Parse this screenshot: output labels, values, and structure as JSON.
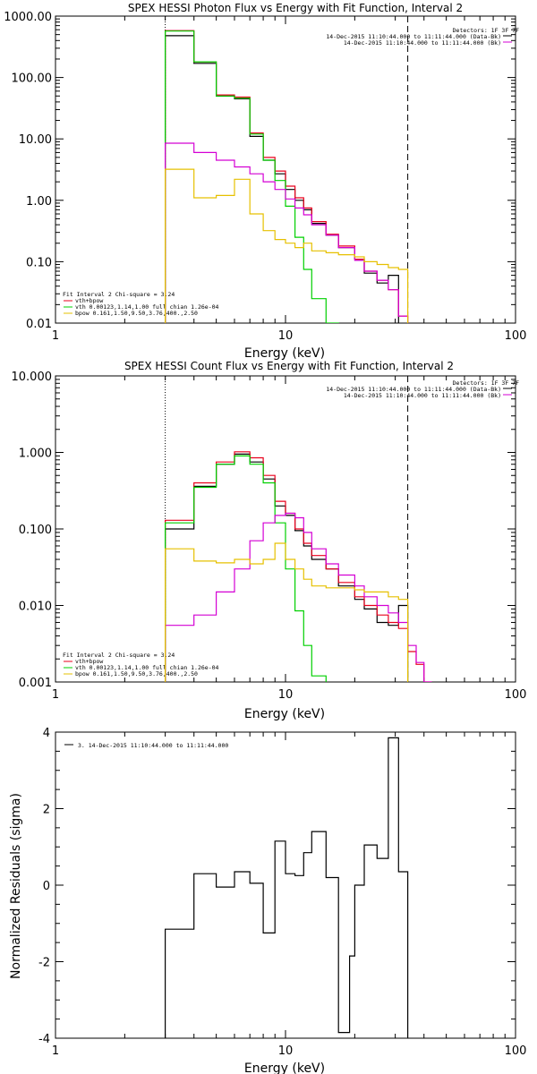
{
  "colors": {
    "total": "#000000",
    "model_sum": "#e8001c",
    "vth": "#00d000",
    "bpow": "#d400d4",
    "bkg": "#e6c000",
    "axis": "#000000"
  },
  "chart_data": [
    {
      "type": "line",
      "title": "SPEX HESSI Photon Flux vs Energy with Fit Function, Interval 2",
      "xlabel": "Energy (keV)",
      "ylabel": "",
      "xscale": "log",
      "yscale": "log",
      "xlim": [
        1,
        100
      ],
      "ylim": [
        0.01,
        1000
      ],
      "xticks": [
        "1",
        "10",
        "100"
      ],
      "yticks": [
        "0.01",
        "0.10",
        "1.00",
        "10.00",
        "100.00",
        "1000.00"
      ],
      "energy_edges": [
        3,
        4,
        5,
        6,
        7,
        8,
        9,
        10,
        11,
        12,
        13,
        15,
        17,
        20,
        22,
        25,
        28,
        31,
        34,
        37,
        40
      ],
      "vlines": [
        {
          "x": 3,
          "style": "dotted"
        },
        {
          "x": 34,
          "style": "dashed"
        }
      ],
      "legend_top": {
        "header": "Detectors: 1F 3F 7F",
        "lines": [
          "14-Dec-2015 11:10:44.000 to 11:11:44.000 (Data-Bk)",
          "14-Dec-2015 11:10:44.000 to 11:11:44.000 (Bk)"
        ]
      },
      "legend_bottom": {
        "header": "Fit Interval 2   Chi-square = 3.24",
        "lines": [
          "vth+bpow",
          "vth 0.00123,1.14,1.00  full chian 1.26e-04",
          "bpow 0.161,1.50,9.50,3.76,400.,2.50"
        ]
      },
      "series": [
        {
          "name": "14-Dec-2015 11:10:44.000 to 11:11:44.000 (Data-Bk)",
          "role": "total",
          "values": [
            480,
            170,
            50,
            45,
            11,
            4.5,
            2.7,
            1.5,
            1.0,
            0.7,
            0.42,
            0.27,
            0.17,
            0.11,
            0.065,
            0.045,
            0.06,
            null,
            null,
            null
          ]
        },
        {
          "name": "vth+bpow",
          "role": "model_sum",
          "values": [
            580,
            180,
            52,
            48,
            12.5,
            5,
            3,
            1.7,
            1.1,
            0.75,
            0.45,
            0.28,
            0.18,
            0.11,
            0.07,
            0.05,
            0.035,
            0.013,
            null,
            null
          ]
        },
        {
          "name": "vth 0.00123,1.14,1.00  full chian 1.26e-04",
          "role": "vth",
          "values": [
            570,
            180,
            50,
            46,
            12,
            4.5,
            2.1,
            0.8,
            0.25,
            0.075,
            0.025,
            0.01,
            0.003,
            null,
            null,
            null,
            null,
            null,
            null,
            null
          ]
        },
        {
          "name": "bpow 0.161,1.50,9.50,3.76,400.,2.50",
          "role": "bpow",
          "values": [
            8.5,
            6.0,
            4.5,
            3.5,
            2.7,
            2.0,
            1.5,
            1.05,
            0.75,
            0.58,
            0.4,
            0.27,
            0.17,
            0.105,
            0.07,
            0.05,
            0.035,
            0.013,
            0.008,
            null
          ]
        },
        {
          "name": "14-Dec-2015 11:10:44.000 to 11:11:44.000 (Bk)",
          "role": "bkg",
          "values": [
            3.2,
            1.1,
            1.2,
            2.2,
            0.6,
            0.32,
            0.23,
            0.2,
            0.17,
            0.2,
            0.15,
            0.14,
            0.13,
            0.12,
            0.1,
            0.09,
            0.08,
            0.075,
            null,
            null
          ]
        }
      ]
    },
    {
      "type": "line",
      "title": "SPEX HESSI Count Flux vs Energy with Fit Function, Interval 2",
      "xlabel": "Energy (keV)",
      "ylabel": "",
      "xscale": "log",
      "yscale": "log",
      "xlim": [
        1,
        100
      ],
      "ylim": [
        0.001,
        10
      ],
      "xticks": [
        "1",
        "10",
        "100"
      ],
      "yticks": [
        "0.001",
        "0.010",
        "0.100",
        "1.000",
        "10.000"
      ],
      "energy_edges": [
        3,
        4,
        5,
        6,
        7,
        8,
        9,
        10,
        11,
        12,
        13,
        15,
        17,
        20,
        22,
        25,
        28,
        31,
        34,
        37,
        40,
        43
      ],
      "vlines": [
        {
          "x": 3,
          "style": "dotted"
        },
        {
          "x": 34,
          "style": "dashed"
        }
      ],
      "legend_top": {
        "header": "Detectors: 1F 3F 7F",
        "lines": [
          "14-Dec-2015 11:10:44.000 to 11:11:44.000 (Data-Bk)",
          "14-Dec-2015 11:10:44.000 to 11:11:44.000 (Bk)"
        ]
      },
      "legend_bottom": {
        "header": "Fit Interval 2   Chi-square = 3.24",
        "lines": [
          "vth+bpow",
          "vth 0.00123,1.14,1.00  full chian 1.26e-04",
          "bpow 0.161,1.50,9.50,3.76,400.,2.50"
        ]
      },
      "series": [
        {
          "name": "14-Dec-2015 11:10:44.000 to 11:11:44.000 (Data-Bk)",
          "role": "total",
          "values": [
            0.1,
            0.36,
            0.7,
            0.95,
            0.75,
            0.45,
            0.2,
            0.15,
            0.095,
            0.06,
            0.04,
            0.03,
            0.018,
            0.012,
            0.009,
            0.006,
            0.0055,
            0.01,
            null,
            null,
            null
          ]
        },
        {
          "name": "vth+bpow",
          "role": "model_sum",
          "values": [
            0.13,
            0.4,
            0.75,
            1.02,
            0.85,
            0.5,
            0.23,
            0.16,
            0.1,
            0.065,
            0.045,
            0.03,
            0.02,
            0.013,
            0.01,
            0.0075,
            0.006,
            0.005,
            0.0025,
            0.0017,
            0.001
          ]
        },
        {
          "name": "vth 0.00123,1.14,1.00  full chian 1.26e-04",
          "role": "vth",
          "values": [
            0.12,
            0.35,
            0.7,
            0.9,
            0.7,
            0.4,
            0.12,
            0.03,
            0.0085,
            0.003,
            0.0012,
            null,
            null,
            null,
            null,
            null,
            null,
            null,
            null,
            null,
            null
          ]
        },
        {
          "name": "bpow 0.161,1.50,9.50,3.76,400.,2.50",
          "role": "bpow",
          "values": [
            0.0055,
            0.0075,
            0.015,
            0.03,
            0.07,
            0.12,
            0.15,
            0.16,
            0.14,
            0.09,
            0.055,
            0.035,
            0.025,
            0.018,
            0.013,
            0.01,
            0.008,
            0.006,
            0.003,
            0.0018,
            0.001
          ]
        },
        {
          "name": "14-Dec-2015 11:10:44.000 to 11:11:44.000 (Bk)",
          "role": "bkg",
          "values": [
            0.055,
            0.038,
            0.036,
            0.04,
            0.035,
            0.04,
            0.065,
            0.04,
            0.03,
            0.022,
            0.018,
            0.017,
            0.017,
            0.016,
            0.015,
            0.015,
            0.013,
            0.012,
            null,
            null,
            null
          ]
        }
      ]
    },
    {
      "type": "line",
      "title": "",
      "xlabel": "Energy (keV)",
      "ylabel": "Normalized Residuals (sigma)",
      "xscale": "log",
      "yscale": "linear",
      "xlim": [
        1,
        100
      ],
      "ylim": [
        -4,
        4
      ],
      "xticks": [
        "1",
        "10",
        "100"
      ],
      "yticks": [
        "-4",
        "-2",
        "0",
        "2",
        "4"
      ],
      "energy_edges": [
        3,
        4,
        5,
        6,
        7,
        8,
        9,
        10,
        11,
        12,
        13,
        15,
        17,
        19,
        20,
        22,
        25,
        28,
        31,
        34
      ],
      "legend": "3. 14-Dec-2015 11:10:44.000 to 11:11:44.000",
      "series": [
        {
          "name": "3. 14-Dec-2015 11:10:44.000 to 11:11:44.000",
          "role": "total",
          "values": [
            -1.15,
            0.3,
            -0.05,
            0.35,
            0.05,
            -1.25,
            1.15,
            0.3,
            0.25,
            0.85,
            1.4,
            0.2,
            -3.85,
            -1.85,
            0.0,
            1.05,
            0.7,
            3.85,
            0.35
          ]
        }
      ]
    }
  ]
}
